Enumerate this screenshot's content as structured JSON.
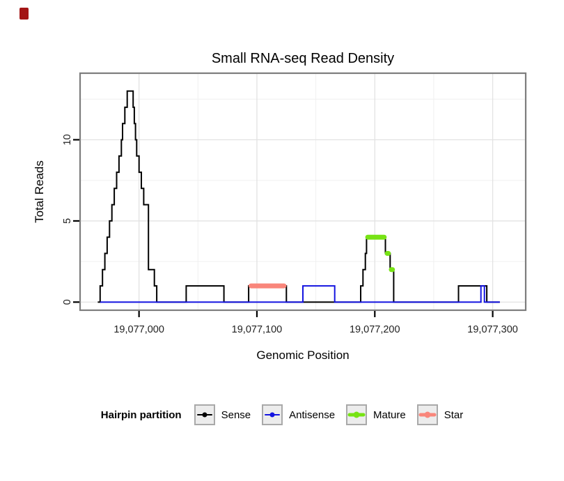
{
  "decor": {
    "corner_marker_color": "#a31515"
  },
  "chart_data": {
    "type": "line",
    "title": "Small RNA-seq Read Density",
    "xlabel": "Genomic Position",
    "ylabel": "Total Reads",
    "xlim": [
      19076950,
      19077328
    ],
    "ylim": [
      -0.5,
      14.1
    ],
    "grid": true,
    "x_ticks": [
      {
        "value": 19077000,
        "label": "19,077,000"
      },
      {
        "value": 19077100,
        "label": "19,077,100"
      },
      {
        "value": 19077200,
        "label": "19,077,200"
      },
      {
        "value": 19077300,
        "label": "19,077,300"
      }
    ],
    "y_ticks": [
      {
        "value": 0,
        "label": "0"
      },
      {
        "value": 5,
        "label": "5"
      },
      {
        "value": 10,
        "label": "10"
      }
    ],
    "x_minor": [
      19077050,
      19077150,
      19077250
    ],
    "y_minor": [
      2.5,
      7.5,
      12.5
    ],
    "legend": {
      "title": "Hairpin partition",
      "position": "bottom",
      "entries": [
        {
          "label": "Sense",
          "color": "#000000"
        },
        {
          "label": "Antisense",
          "color": "#1414e0"
        },
        {
          "label": "Mature",
          "color": "#77e314"
        },
        {
          "label": "Star",
          "color": "#f9867b"
        }
      ]
    },
    "series": [
      {
        "name": "Sense",
        "color": "#000000",
        "width": 2,
        "points": [
          [
            19076965,
            0
          ],
          [
            19076967,
            0
          ],
          [
            19076967,
            1
          ],
          [
            19076969,
            1
          ],
          [
            19076969,
            2
          ],
          [
            19076971,
            2
          ],
          [
            19076971,
            3
          ],
          [
            19076973,
            3
          ],
          [
            19076973,
            4
          ],
          [
            19076975,
            4
          ],
          [
            19076975,
            5
          ],
          [
            19076977,
            5
          ],
          [
            19076977,
            6
          ],
          [
            19076979,
            6
          ],
          [
            19076979,
            7
          ],
          [
            19076981,
            7
          ],
          [
            19076981,
            8
          ],
          [
            19076983,
            8
          ],
          [
            19076983,
            9
          ],
          [
            19076985,
            9
          ],
          [
            19076985,
            10
          ],
          [
            19076986,
            10
          ],
          [
            19076986,
            11
          ],
          [
            19076988,
            11
          ],
          [
            19076988,
            12
          ],
          [
            19076990,
            12
          ],
          [
            19076990,
            13
          ],
          [
            19076995,
            13
          ],
          [
            19076995,
            12
          ],
          [
            19076996,
            12
          ],
          [
            19076996,
            11
          ],
          [
            19076997,
            11
          ],
          [
            19076997,
            10
          ],
          [
            19076998,
            10
          ],
          [
            19076998,
            9
          ],
          [
            19077000,
            9
          ],
          [
            19077000,
            8
          ],
          [
            19077002,
            8
          ],
          [
            19077002,
            7
          ],
          [
            19077004,
            7
          ],
          [
            19077004,
            6
          ],
          [
            19077008,
            6
          ],
          [
            19077008,
            2
          ],
          [
            19077013,
            2
          ],
          [
            19077013,
            1
          ],
          [
            19077015,
            1
          ],
          [
            19077015,
            0
          ],
          [
            19077040,
            0
          ],
          [
            19077040,
            1
          ],
          [
            19077072,
            1
          ],
          [
            19077072,
            0
          ],
          [
            19077093,
            0
          ],
          [
            19077093,
            1
          ],
          [
            19077125,
            1
          ],
          [
            19077125,
            0
          ],
          [
            19077188,
            0
          ],
          [
            19077188,
            1
          ],
          [
            19077190,
            1
          ],
          [
            19077190,
            2
          ],
          [
            19077192,
            2
          ],
          [
            19077192,
            3
          ],
          [
            19077193,
            3
          ],
          [
            19077193,
            4
          ],
          [
            19077209,
            4
          ],
          [
            19077209,
            3
          ],
          [
            19077213,
            3
          ],
          [
            19077213,
            2
          ],
          [
            19077216,
            2
          ],
          [
            19077216,
            0
          ],
          [
            19077271,
            0
          ],
          [
            19077271,
            1
          ],
          [
            19077295,
            1
          ],
          [
            19077295,
            0
          ],
          [
            19077306,
            0
          ]
        ]
      },
      {
        "name": "Antisense",
        "color": "#1414e0",
        "width": 2,
        "points": [
          [
            19076967,
            0
          ],
          [
            19077139,
            0
          ],
          [
            19077139,
            1
          ],
          [
            19077166,
            1
          ],
          [
            19077166,
            0
          ],
          [
            19077290,
            0
          ],
          [
            19077290,
            1
          ],
          [
            19077293,
            1
          ],
          [
            19077293,
            0
          ],
          [
            19077306,
            0
          ]
        ]
      },
      {
        "name": "Mature",
        "color": "#77e314",
        "width": 7,
        "segments": [
          [
            [
              19077194,
              4
            ],
            [
              19077208,
              4
            ]
          ],
          [
            [
              19077210.5,
              3
            ],
            [
              19077211.5,
              3
            ]
          ],
          [
            [
              19077214,
              2
            ],
            [
              19077215,
              2
            ]
          ]
        ]
      },
      {
        "name": "Star",
        "color": "#f9867b",
        "width": 7,
        "segments": [
          [
            [
              19077095,
              1
            ],
            [
              19077123,
              1
            ]
          ]
        ]
      }
    ]
  }
}
